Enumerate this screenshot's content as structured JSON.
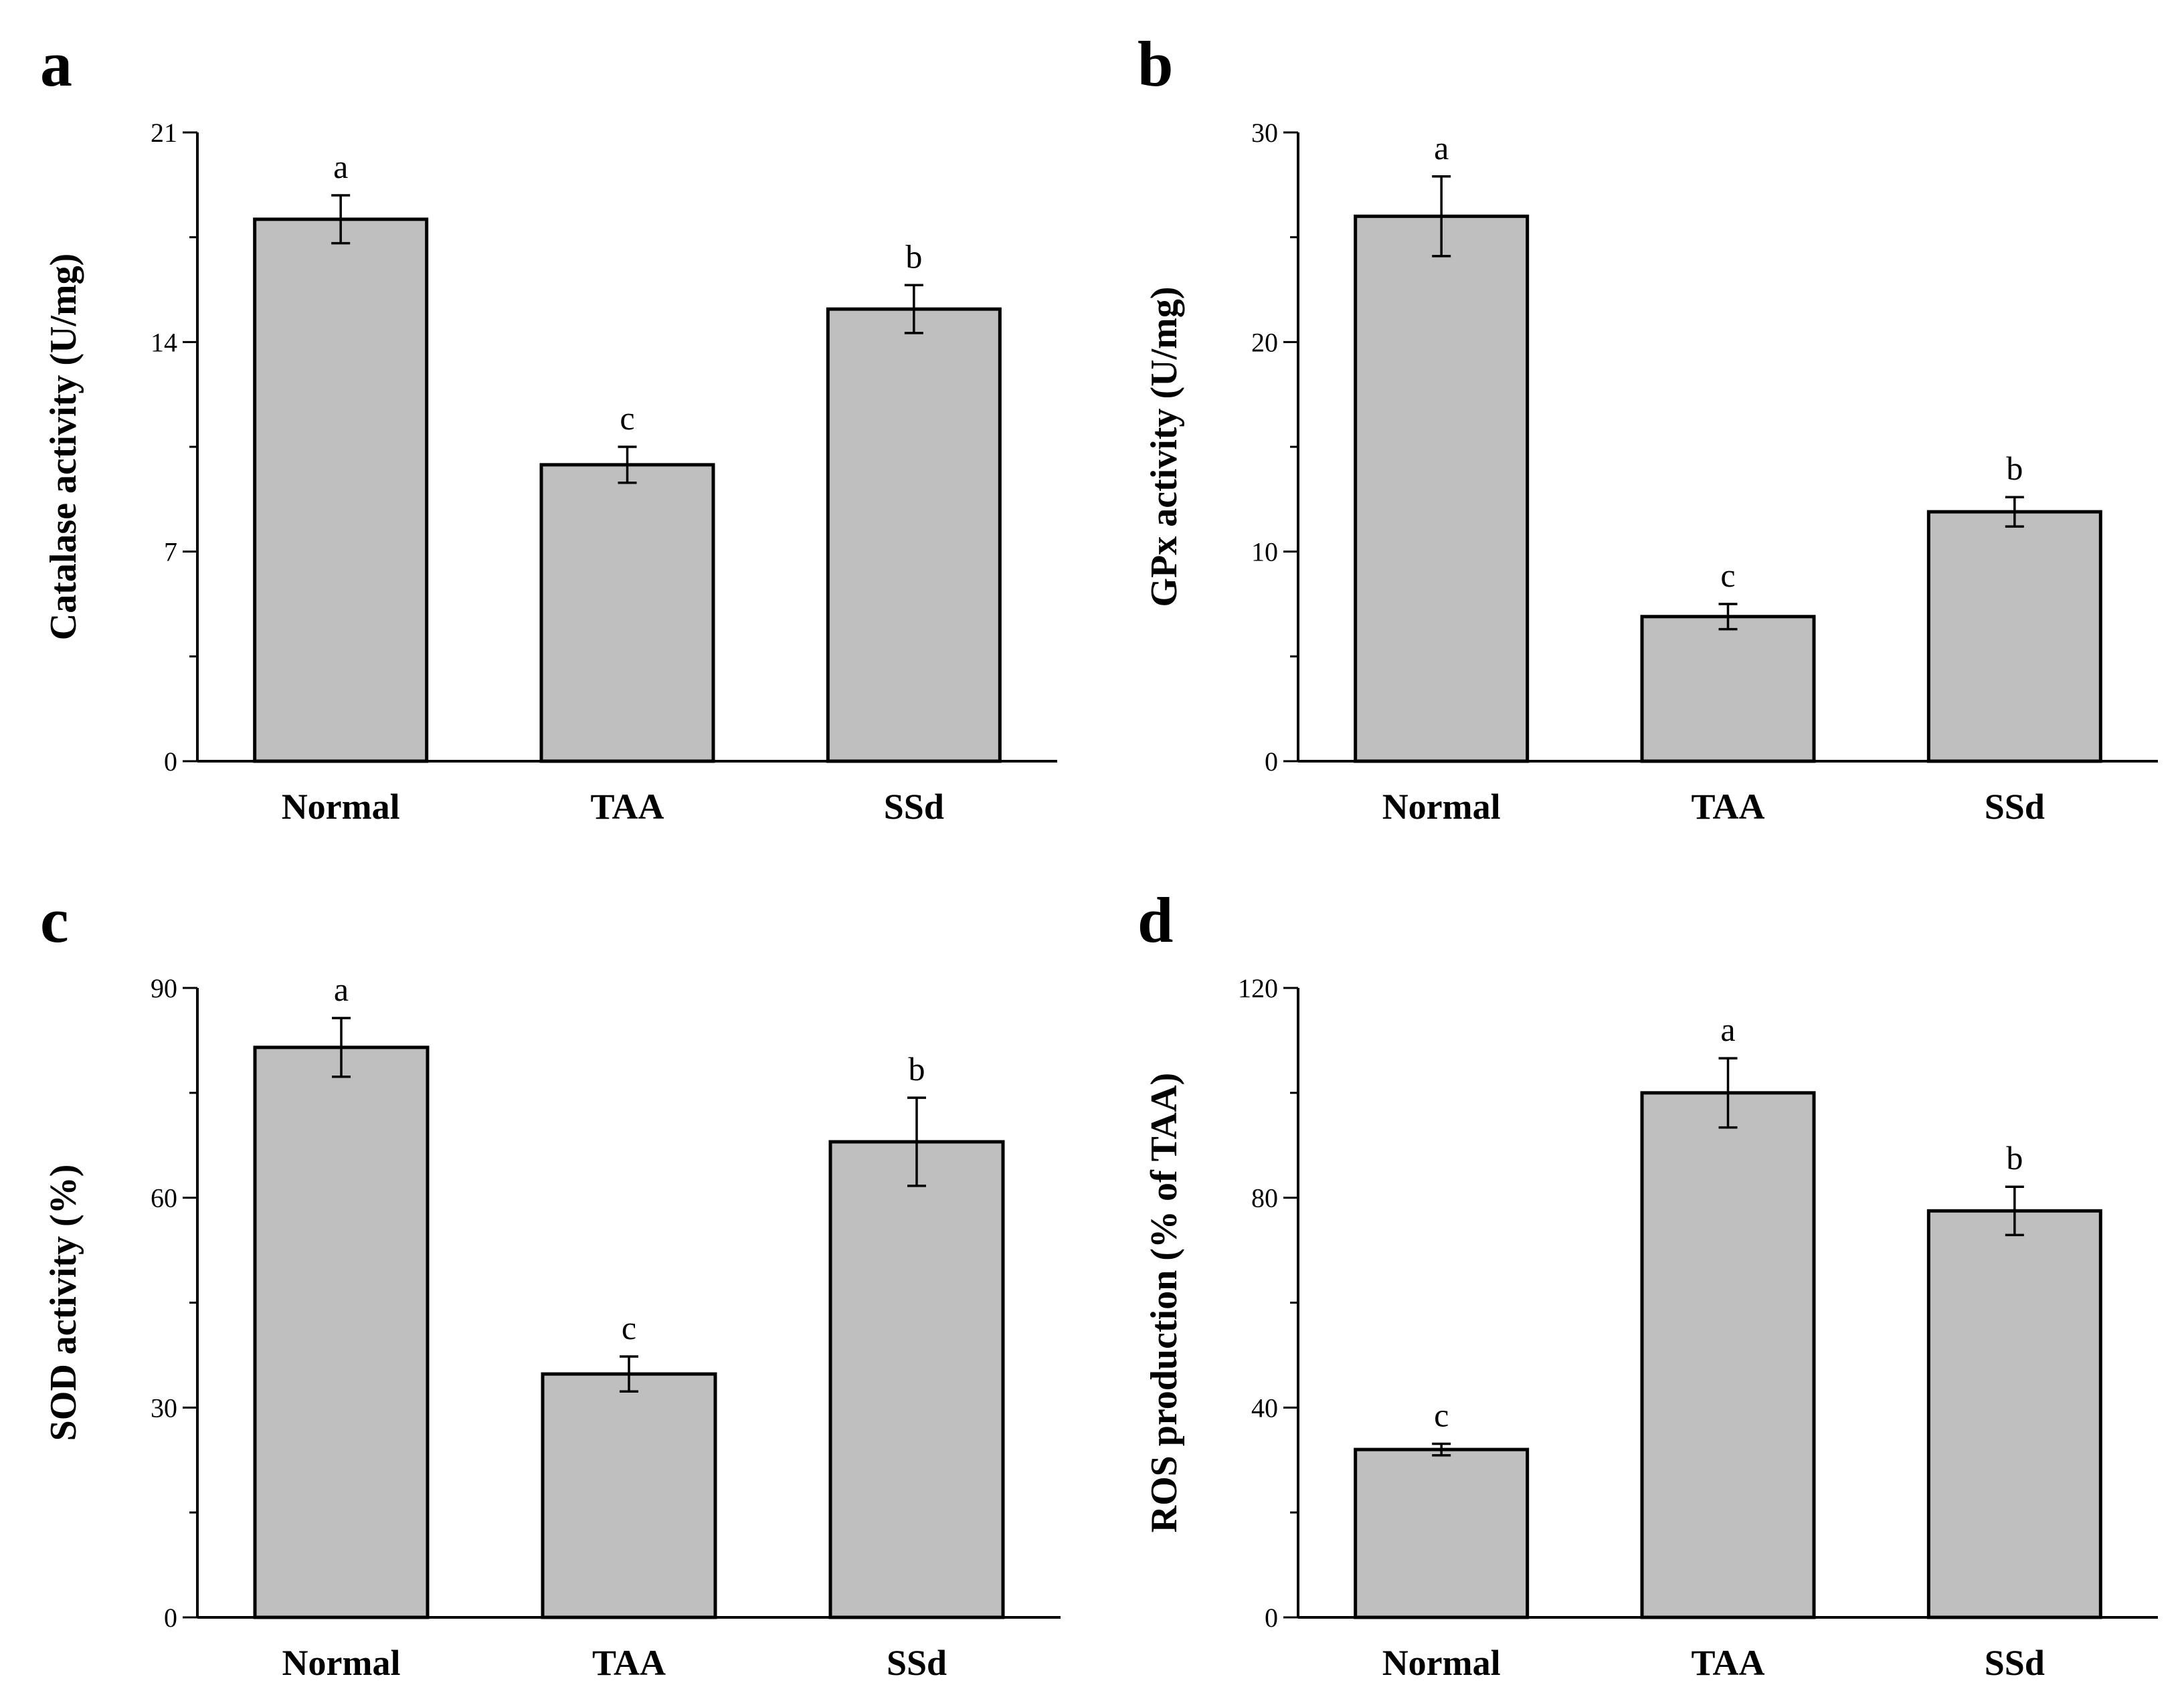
{
  "chart_data": [
    {
      "panel": "a",
      "type": "bar",
      "categories": [
        "Normal",
        "TAA",
        "SSd"
      ],
      "values": [
        18.1,
        9.9,
        15.1
      ],
      "errors": [
        0.8,
        0.6,
        0.8
      ],
      "significance": [
        "a",
        "c",
        "b"
      ],
      "xlabel": "",
      "ylabel": "Catalase activity (U/mg)",
      "ylim": [
        0,
        21
      ],
      "yticks": [
        0,
        7,
        14,
        21
      ],
      "ytick_labels": [
        "0",
        "7",
        "14",
        "21"
      ],
      "bar_color": "#bfbfbf",
      "grid": false
    },
    {
      "panel": "b",
      "type": "bar",
      "categories": [
        "Normal",
        "TAA",
        "SSd"
      ],
      "values": [
        26.0,
        6.9,
        11.9
      ],
      "errors": [
        1.9,
        0.6,
        0.7
      ],
      "significance": [
        "a",
        "c",
        "b"
      ],
      "xlabel": "",
      "ylabel": "GPx activity (U/mg)",
      "ylim": [
        0,
        30
      ],
      "yticks": [
        0,
        10,
        20,
        30
      ],
      "ytick_labels": [
        "0",
        "10",
        "20",
        "30"
      ],
      "bar_color": "#bfbfbf",
      "grid": false
    },
    {
      "panel": "c",
      "type": "bar",
      "categories": [
        "Normal",
        "TAA",
        "SSd"
      ],
      "values": [
        81.5,
        34.8,
        68.0
      ],
      "errors": [
        4.2,
        2.5,
        6.3
      ],
      "significance": [
        "a",
        "c",
        "b"
      ],
      "xlabel": "",
      "ylabel": "SOD activity (%)",
      "ylim": [
        0,
        90
      ],
      "yticks": [
        0,
        30,
        60,
        90
      ],
      "ytick_labels": [
        "0",
        "30",
        "60",
        "90"
      ],
      "bar_color": "#bfbfbf",
      "grid": false
    },
    {
      "panel": "d",
      "type": "bar",
      "categories": [
        "Normal",
        "TAA",
        "SSd"
      ],
      "values": [
        32.0,
        100.0,
        77.5
      ],
      "errors": [
        1.1,
        6.6,
        4.6
      ],
      "significance": [
        "c",
        "a",
        "b"
      ],
      "xlabel": "",
      "ylabel": "ROS production (% of TAA)",
      "ylim": [
        0,
        120
      ],
      "yticks": [
        0,
        40,
        80,
        120
      ],
      "ytick_labels": [
        "0",
        "40",
        "80",
        "120"
      ],
      "bar_color": "#bfbfbf",
      "grid": false
    }
  ]
}
